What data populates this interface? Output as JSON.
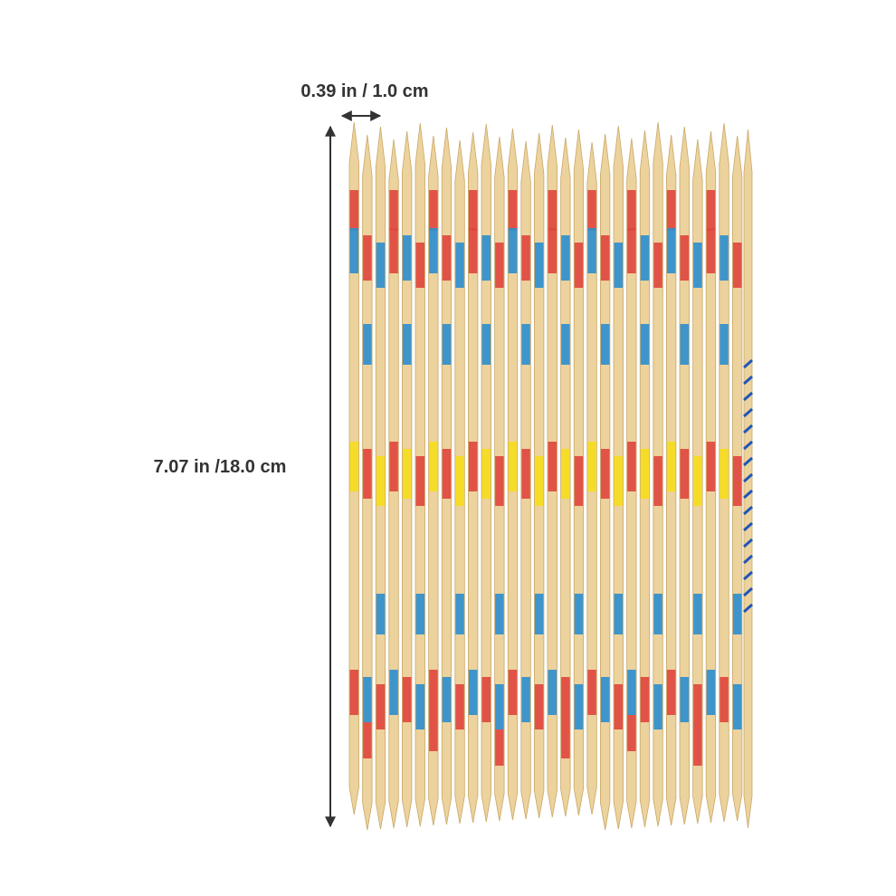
{
  "dimensions": {
    "width_label": "0.39 in / 1.0 cm",
    "length_label": "7.07 in /18.0 cm"
  }
}
